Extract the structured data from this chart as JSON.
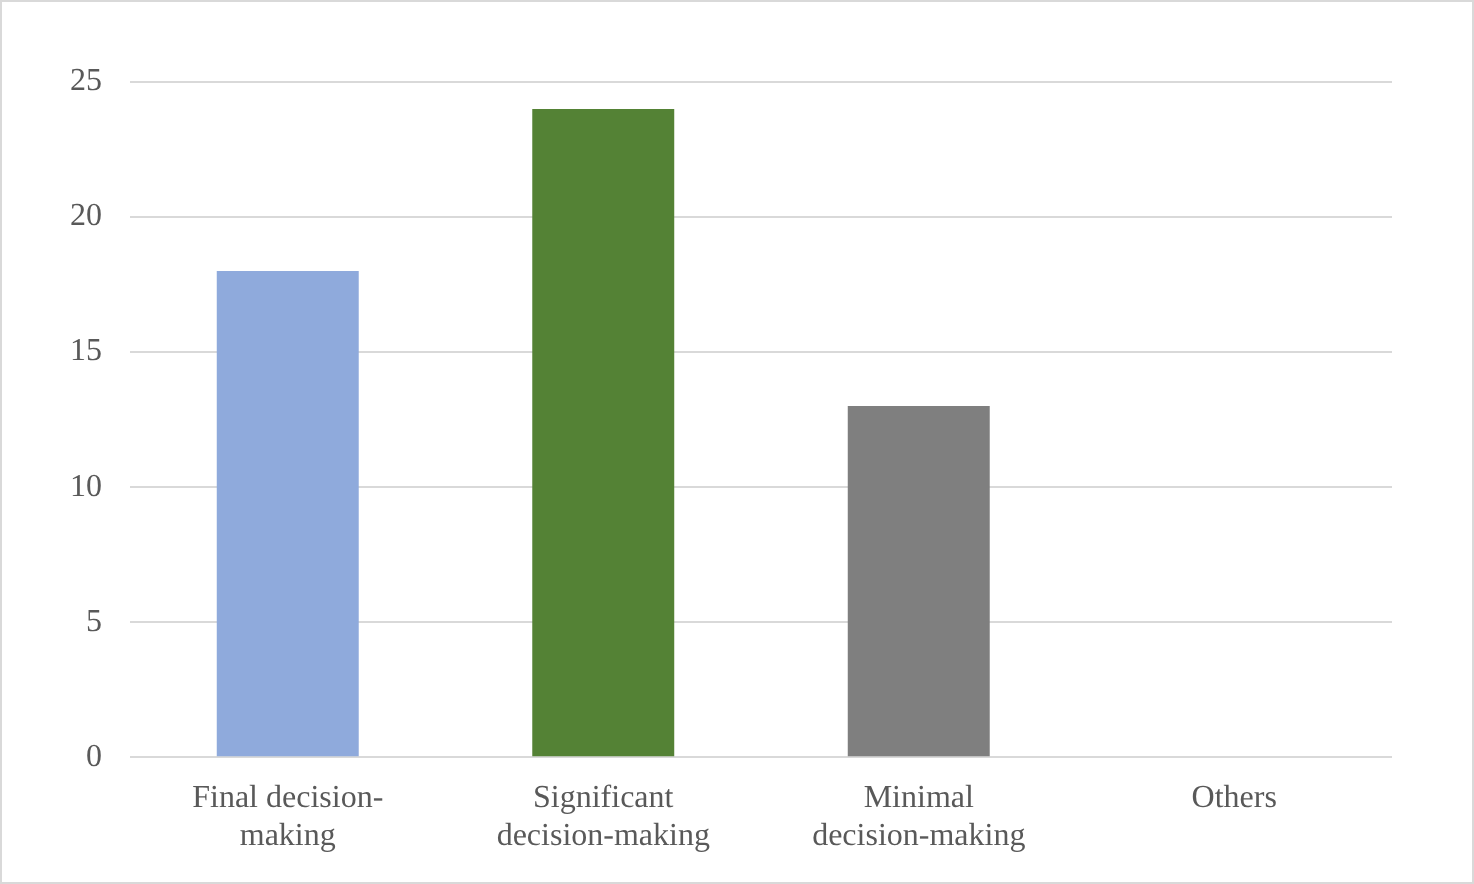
{
  "chart_data": {
    "type": "bar",
    "categories": [
      "Final decision-making",
      "Significant decision-making",
      "Minimal decision-making",
      "Others"
    ],
    "values": [
      18,
      24,
      13,
      0
    ],
    "colors": [
      "#8faadc",
      "#548235",
      "#7f7f7f",
      "#bf9000"
    ],
    "ylim": [
      0,
      25
    ],
    "yticks": [
      0,
      5,
      10,
      15,
      20,
      25
    ],
    "grid": "y",
    "legend": false
  }
}
